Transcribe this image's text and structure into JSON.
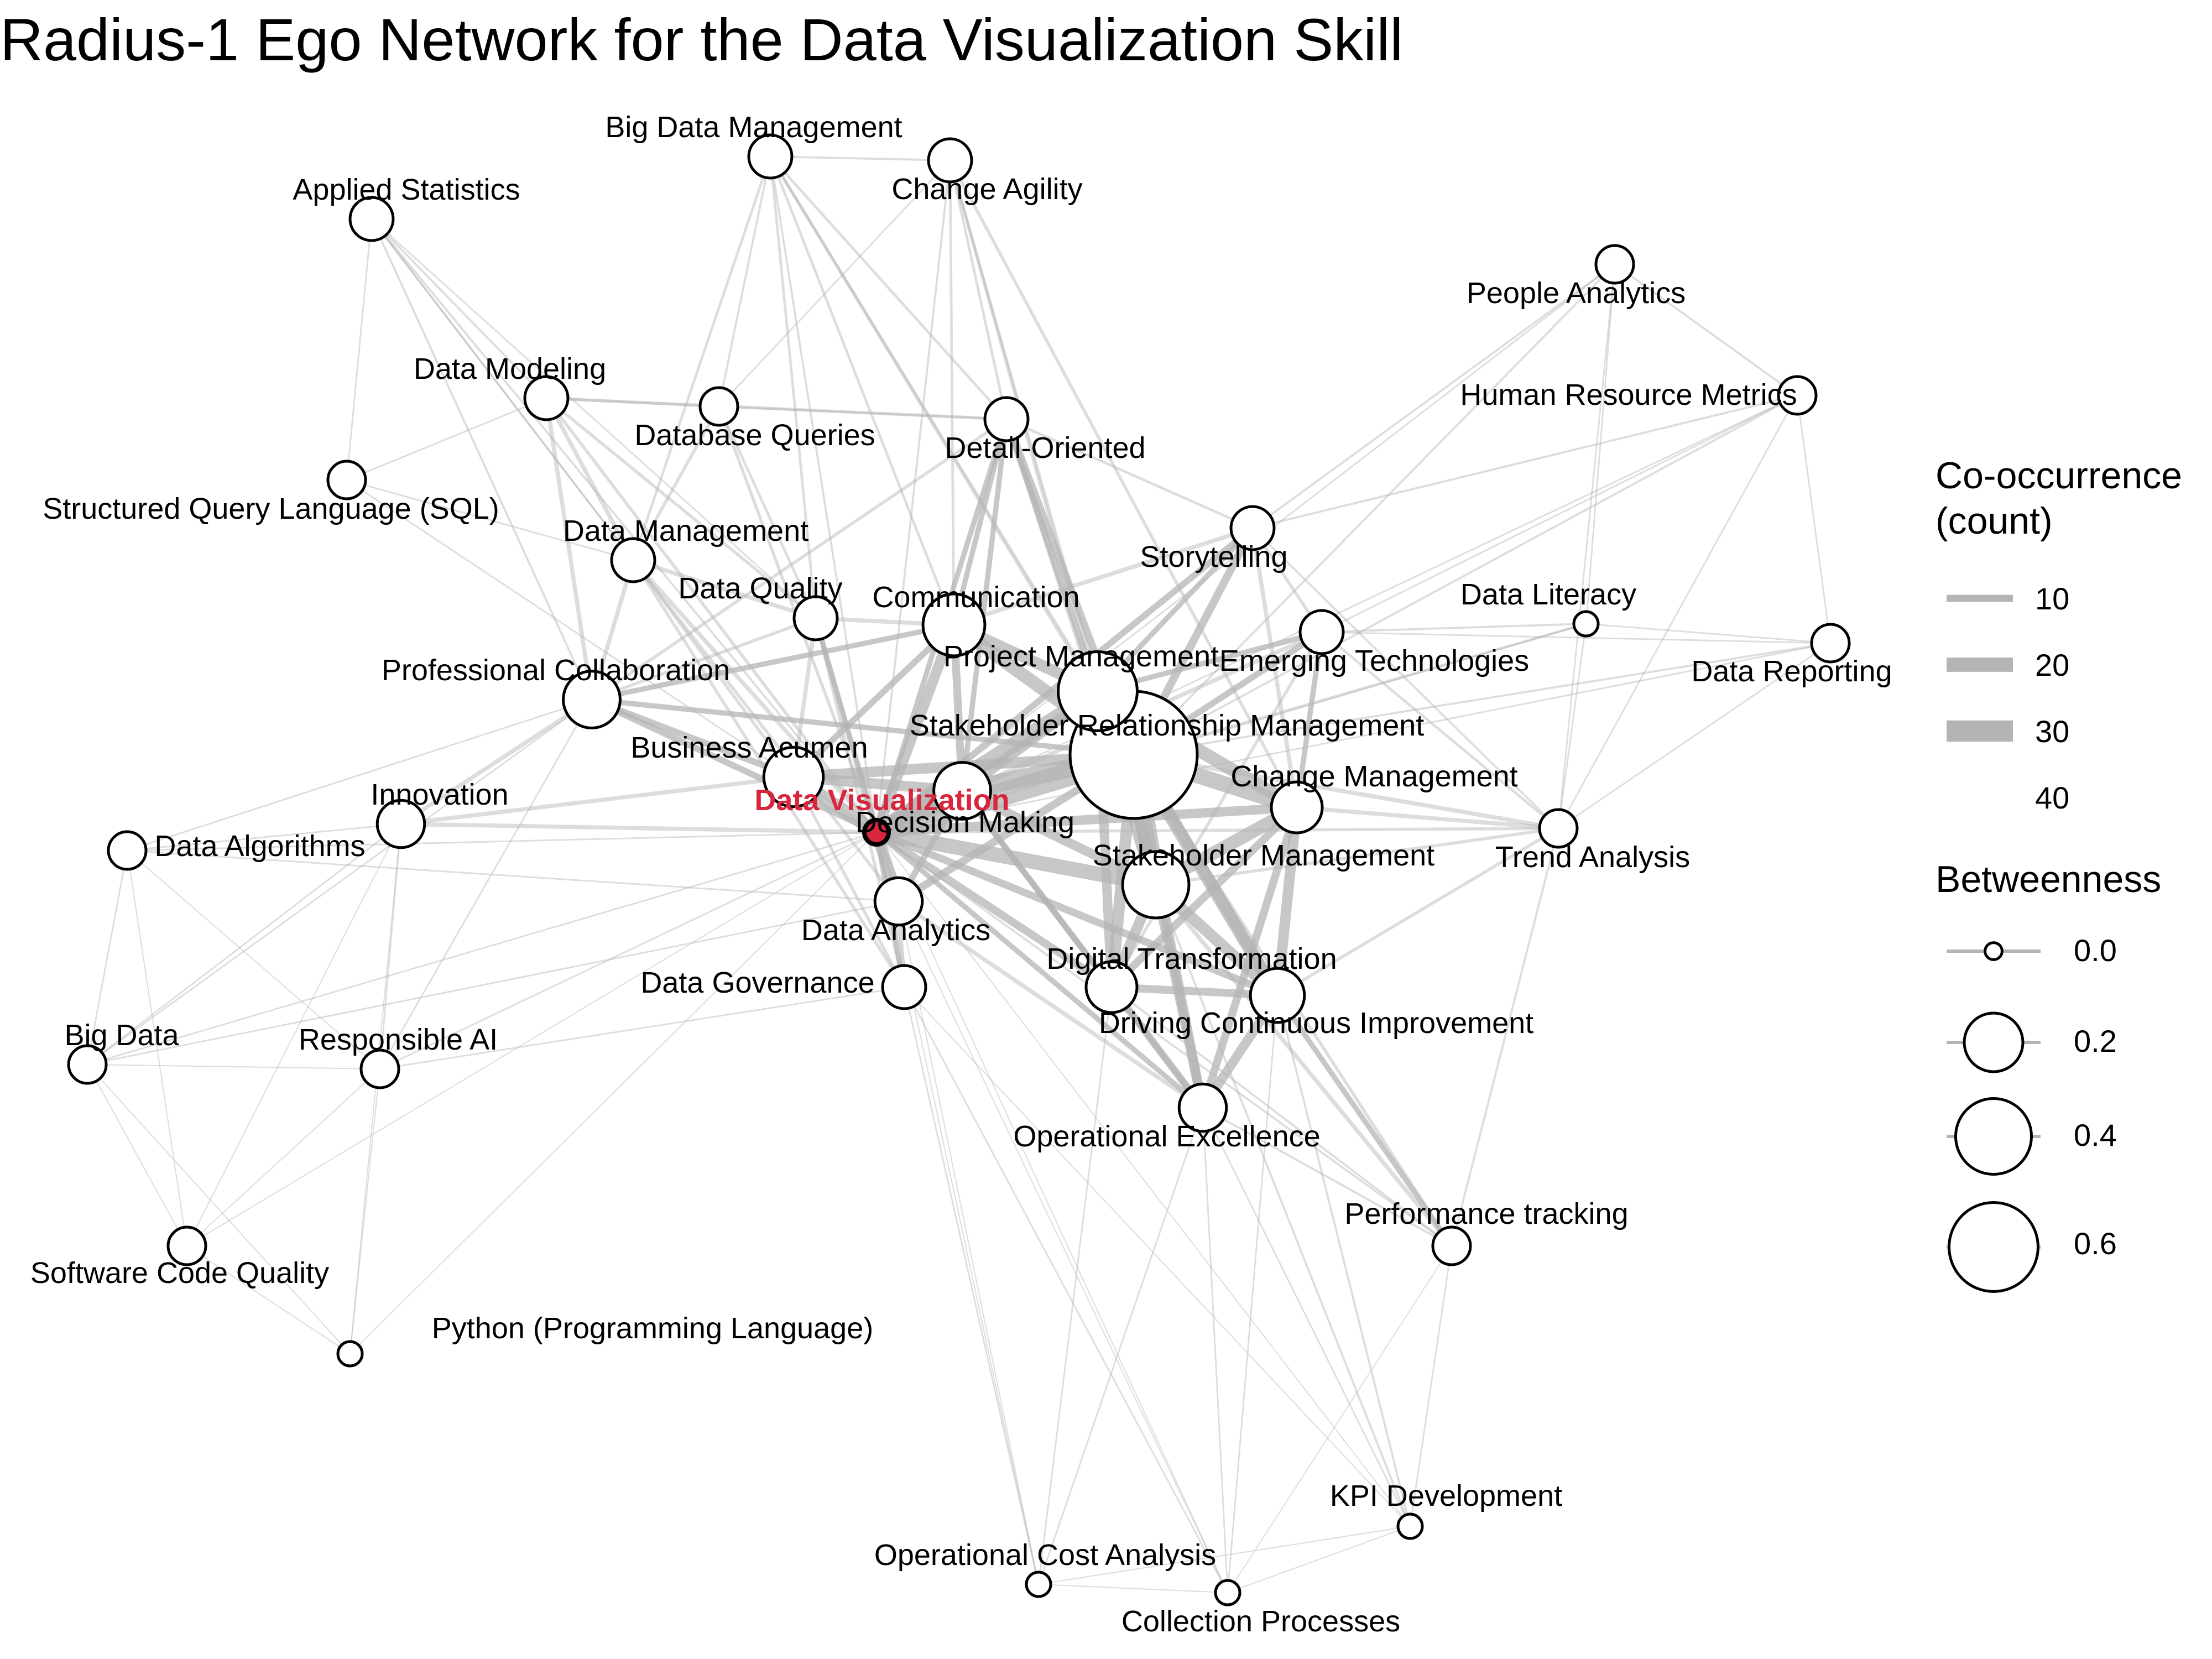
{
  "title": "Radius-1 Ego Network for the Data Visualization Skill",
  "ego": "Data Visualization",
  "colors": {
    "ego_fill": "#d7263d",
    "ego_label": "#d7263d",
    "edge": "#b4b4b4",
    "node_fill": "#ffffff",
    "node_stroke": "#000000"
  },
  "nodes": [
    {
      "id": "dv",
      "label": "Data Visualization",
      "betweenness": 0.0,
      "ego": true
    },
    {
      "id": "srm",
      "label": "Stakeholder Relationship Management",
      "betweenness": 0.6
    },
    {
      "id": "pm",
      "label": "Project Management",
      "betweenness": 0.17
    },
    {
      "id": "comm",
      "label": "Communication",
      "betweenness": 0.08
    },
    {
      "id": "sm",
      "label": "Stakeholder Management",
      "betweenness": 0.1
    },
    {
      "id": "dm_dec",
      "label": "Decision Making",
      "betweenness": 0.06
    },
    {
      "id": "ba",
      "label": "Business Acumen",
      "betweenness": 0.07
    },
    {
      "id": "pc",
      "label": "Professional Collaboration",
      "betweenness": 0.06
    },
    {
      "id": "cm",
      "label": "Change Management",
      "betweenness": 0.04
    },
    {
      "id": "dci",
      "label": "Driving Continuous Improvement",
      "betweenness": 0.05
    },
    {
      "id": "dt",
      "label": "Digital Transformation",
      "betweenness": 0.04
    },
    {
      "id": "da",
      "label": "Data Analytics",
      "betweenness": 0.03
    },
    {
      "id": "dg",
      "label": "Data Governance",
      "betweenness": 0.02
    },
    {
      "id": "dq",
      "label": "Data Quality",
      "betweenness": 0.02
    },
    {
      "id": "dmgmt",
      "label": "Data Management",
      "betweenness": 0.02
    },
    {
      "id": "inn",
      "label": "Innovation",
      "betweenness": 0.03
    },
    {
      "id": "oe",
      "label": "Operational Excellence",
      "betweenness": 0.03
    },
    {
      "id": "et",
      "label": "Emerging Technologies",
      "betweenness": 0.02
    },
    {
      "id": "st",
      "label": "Storytelling",
      "betweenness": 0.02
    },
    {
      "id": "do",
      "label": "Detail-Oriented",
      "betweenness": 0.02
    },
    {
      "id": "dbq",
      "label": "Database Queries",
      "betweenness": 0.01
    },
    {
      "id": "dmod",
      "label": "Data Modeling",
      "betweenness": 0.02
    },
    {
      "id": "as",
      "label": "Applied Statistics",
      "betweenness": 0.02
    },
    {
      "id": "bdm",
      "label": "Big Data Management",
      "betweenness": 0.02
    },
    {
      "id": "ca",
      "label": "Change Agility",
      "betweenness": 0.02
    },
    {
      "id": "pa",
      "label": "People Analytics",
      "betweenness": 0.01
    },
    {
      "id": "hrm",
      "label": "Human Resource Metrics",
      "betweenness": 0.01
    },
    {
      "id": "dl",
      "label": "Data Literacy",
      "betweenness": 0.0
    },
    {
      "id": "dr",
      "label": "Data Reporting",
      "betweenness": 0.01
    },
    {
      "id": "ta",
      "label": "Trend Analysis",
      "betweenness": 0.01
    },
    {
      "id": "sql",
      "label": "Structured Query Language (SQL)",
      "betweenness": 0.01
    },
    {
      "id": "dalg",
      "label": "Data Algorithms",
      "betweenness": 0.01
    },
    {
      "id": "bd",
      "label": "Big Data",
      "betweenness": 0.01
    },
    {
      "id": "rai",
      "label": "Responsible AI",
      "betweenness": 0.01
    },
    {
      "id": "scq",
      "label": "Software Code Quality",
      "betweenness": 0.01
    },
    {
      "id": "py",
      "label": "Python (Programming Language)",
      "betweenness": 0.0
    },
    {
      "id": "pt",
      "label": "Performance tracking",
      "betweenness": 0.01
    },
    {
      "id": "kpi",
      "label": "KPI Development",
      "betweenness": 0.0
    },
    {
      "id": "oca",
      "label": "Operational Cost Analysis",
      "betweenness": 0.0
    },
    {
      "id": "cp",
      "label": "Collection Processes",
      "betweenness": 0.0
    }
  ],
  "edges": [
    [
      "dv",
      "srm",
      45
    ],
    [
      "dv",
      "pm",
      30
    ],
    [
      "dv",
      "dm_dec",
      35
    ],
    [
      "dv",
      "ba",
      25
    ],
    [
      "dv",
      "comm",
      20
    ],
    [
      "dv",
      "sm",
      28
    ],
    [
      "dv",
      "cm",
      18
    ],
    [
      "dv",
      "da",
      22
    ],
    [
      "dv",
      "dt",
      15
    ],
    [
      "dv",
      "dci",
      14
    ],
    [
      "dv",
      "pc",
      12
    ],
    [
      "dv",
      "dq",
      10
    ],
    [
      "dv",
      "dg",
      10
    ],
    [
      "dv",
      "inn",
      8
    ],
    [
      "dv",
      "oe",
      10
    ],
    [
      "dv",
      "et",
      8
    ],
    [
      "dv",
      "st",
      12
    ],
    [
      "dv",
      "do",
      10
    ],
    [
      "dv",
      "dbq",
      6
    ],
    [
      "dv",
      "dmod",
      6
    ],
    [
      "dv",
      "dmgmt",
      8
    ],
    [
      "dv",
      "as",
      4
    ],
    [
      "dv",
      "bdm",
      4
    ],
    [
      "dv",
      "ca",
      4
    ],
    [
      "dv",
      "pa",
      3
    ],
    [
      "dv",
      "hrm",
      3
    ],
    [
      "dv",
      "dl",
      3
    ],
    [
      "dv",
      "dr",
      3
    ],
    [
      "dv",
      "ta",
      6
    ],
    [
      "dv",
      "sql",
      3
    ],
    [
      "dv",
      "dalg",
      3
    ],
    [
      "dv",
      "bd",
      3
    ],
    [
      "dv",
      "rai",
      3
    ],
    [
      "dv",
      "scq",
      2
    ],
    [
      "dv",
      "py",
      2
    ],
    [
      "dv",
      "pt",
      4
    ],
    [
      "dv",
      "kpi",
      2
    ],
    [
      "dv",
      "oca",
      2
    ],
    [
      "dv",
      "cp",
      2
    ],
    [
      "srm",
      "pm",
      40
    ],
    [
      "srm",
      "sm",
      38
    ],
    [
      "srm",
      "dm_dec",
      35
    ],
    [
      "srm",
      "comm",
      25
    ],
    [
      "srm",
      "cm",
      30
    ],
    [
      "srm",
      "dci",
      25
    ],
    [
      "srm",
      "dt",
      22
    ],
    [
      "srm",
      "ba",
      20
    ],
    [
      "srm",
      "st",
      15
    ],
    [
      "srm",
      "et",
      12
    ],
    [
      "srm",
      "oe",
      18
    ],
    [
      "srm",
      "ta",
      8
    ],
    [
      "srm",
      "do",
      14
    ],
    [
      "srm",
      "pc",
      10
    ],
    [
      "srm",
      "da",
      15
    ],
    [
      "srm",
      "dl",
      5
    ],
    [
      "srm",
      "dr",
      4
    ],
    [
      "srm",
      "pt",
      6
    ],
    [
      "srm",
      "hrm",
      4
    ],
    [
      "srm",
      "pa",
      4
    ],
    [
      "pm",
      "sm",
      30
    ],
    [
      "pm",
      "comm",
      22
    ],
    [
      "pm",
      "cm",
      25
    ],
    [
      "pm",
      "dm_dec",
      20
    ],
    [
      "pm",
      "dci",
      20
    ],
    [
      "pm",
      "dt",
      18
    ],
    [
      "pm",
      "st",
      10
    ],
    [
      "pm",
      "et",
      10
    ],
    [
      "pm",
      "do",
      12
    ],
    [
      "pm",
      "ca",
      6
    ],
    [
      "pm",
      "bdm",
      5
    ],
    [
      "sm",
      "cm",
      25
    ],
    [
      "sm",
      "dci",
      22
    ],
    [
      "sm",
      "dt",
      20
    ],
    [
      "sm",
      "oe",
      18
    ],
    [
      "sm",
      "dm_dec",
      18
    ],
    [
      "sm",
      "pt",
      8
    ],
    [
      "sm",
      "kpi",
      4
    ],
    [
      "sm",
      "ta",
      6
    ],
    [
      "cm",
      "dci",
      20
    ],
    [
      "cm",
      "dt",
      15
    ],
    [
      "cm",
      "oe",
      15
    ],
    [
      "cm",
      "ta",
      8
    ],
    [
      "cm",
      "et",
      10
    ],
    [
      "cm",
      "st",
      8
    ],
    [
      "dci",
      "dt",
      15
    ],
    [
      "dci",
      "oe",
      18
    ],
    [
      "dci",
      "pt",
      10
    ],
    [
      "dci",
      "kpi",
      4
    ],
    [
      "dci",
      "cp",
      3
    ],
    [
      "dt",
      "oe",
      14
    ],
    [
      "dt",
      "dm_dec",
      12
    ],
    [
      "dt",
      "oca",
      3
    ],
    [
      "dm_dec",
      "ba",
      20
    ],
    [
      "dm_dec",
      "comm",
      15
    ],
    [
      "dm_dec",
      "da",
      12
    ],
    [
      "dm_dec",
      "oe",
      10
    ],
    [
      "dm_dec",
      "do",
      10
    ],
    [
      "ba",
      "comm",
      12
    ],
    [
      "ba",
      "pc",
      12
    ],
    [
      "ba",
      "dq",
      8
    ],
    [
      "ba",
      "inn",
      8
    ],
    [
      "ba",
      "dg",
      6
    ],
    [
      "ba",
      "dmgmt",
      6
    ],
    [
      "comm",
      "dq",
      8
    ],
    [
      "comm",
      "do",
      10
    ],
    [
      "comm",
      "pc",
      10
    ],
    [
      "comm",
      "st",
      8
    ],
    [
      "comm",
      "bdm",
      5
    ],
    [
      "comm",
      "ca",
      5
    ],
    [
      "pc",
      "dmgmt",
      8
    ],
    [
      "pc",
      "dmod",
      8
    ],
    [
      "pc",
      "inn",
      8
    ],
    [
      "pc",
      "dq",
      6
    ],
    [
      "pc",
      "dalg",
      3
    ],
    [
      "pc",
      "bd",
      3
    ],
    [
      "pc",
      "rai",
      3
    ],
    [
      "pc",
      "as",
      4
    ],
    [
      "pc",
      "do",
      6
    ],
    [
      "da",
      "dg",
      8
    ],
    [
      "da",
      "dq",
      8
    ],
    [
      "da",
      "dmgmt",
      6
    ],
    [
      "da",
      "oe",
      8
    ],
    [
      "da",
      "bd",
      3
    ],
    [
      "da",
      "dalg",
      3
    ],
    [
      "dg",
      "dq",
      6
    ],
    [
      "dg",
      "dmgmt",
      6
    ],
    [
      "dg",
      "rai",
      3
    ],
    [
      "dg",
      "oca",
      3
    ],
    [
      "dg",
      "cp",
      3
    ],
    [
      "dg",
      "kpi",
      2
    ],
    [
      "dq",
      "dmgmt",
      8
    ],
    [
      "dq",
      "dmod",
      6
    ],
    [
      "dq",
      "dbq",
      5
    ],
    [
      "dq",
      "bdm",
      5
    ],
    [
      "dmgmt",
      "dmod",
      8
    ],
    [
      "dmgmt",
      "dbq",
      6
    ],
    [
      "dmgmt",
      "bdm",
      5
    ],
    [
      "dmgmt",
      "as",
      4
    ],
    [
      "dmgmt",
      "sql",
      3
    ],
    [
      "dmod",
      "dbq",
      5
    ],
    [
      "dmod",
      "as",
      4
    ],
    [
      "dmod",
      "sql",
      3
    ],
    [
      "dmod",
      "do",
      6
    ],
    [
      "dbq",
      "bdm",
      4
    ],
    [
      "dbq",
      "ca",
      3
    ],
    [
      "dbq",
      "do",
      4
    ],
    [
      "as",
      "sql",
      3
    ],
    [
      "as",
      "dmgmt",
      3
    ],
    [
      "as",
      "dq",
      3
    ],
    [
      "bdm",
      "ca",
      4
    ],
    [
      "bdm",
      "do",
      5
    ],
    [
      "bdm",
      "srm",
      6
    ],
    [
      "ca",
      "do",
      5
    ],
    [
      "ca",
      "sm",
      5
    ],
    [
      "ca",
      "cm",
      6
    ],
    [
      "do",
      "st",
      5
    ],
    [
      "do",
      "sm",
      8
    ],
    [
      "st",
      "et",
      6
    ],
    [
      "st",
      "pa",
      4
    ],
    [
      "st",
      "hrm",
      4
    ],
    [
      "st",
      "ta",
      4
    ],
    [
      "et",
      "dl",
      4
    ],
    [
      "et",
      "ta",
      5
    ],
    [
      "et",
      "dr",
      3
    ],
    [
      "et",
      "dt",
      6
    ],
    [
      "pa",
      "hrm",
      4
    ],
    [
      "pa",
      "dl",
      3
    ],
    [
      "pa",
      "ta",
      3
    ],
    [
      "hrm",
      "dr",
      3
    ],
    [
      "hrm",
      "ta",
      3
    ],
    [
      "hrm",
      "et",
      3
    ],
    [
      "dl",
      "dr",
      3
    ],
    [
      "dl",
      "ta",
      3
    ],
    [
      "dr",
      "ta",
      3
    ],
    [
      "ta",
      "pt",
      4
    ],
    [
      "ta",
      "dci",
      6
    ],
    [
      "inn",
      "dalg",
      3
    ],
    [
      "inn",
      "bd",
      3
    ],
    [
      "inn",
      "rai",
      3
    ],
    [
      "inn",
      "scq",
      2
    ],
    [
      "inn",
      "py",
      2
    ],
    [
      "dalg",
      "bd",
      3
    ],
    [
      "dalg",
      "scq",
      2
    ],
    [
      "dalg",
      "rai",
      2
    ],
    [
      "bd",
      "rai",
      2
    ],
    [
      "bd",
      "scq",
      2
    ],
    [
      "bd",
      "py",
      2
    ],
    [
      "rai",
      "scq",
      2
    ],
    [
      "rai",
      "py",
      2
    ],
    [
      "scq",
      "py",
      2
    ],
    [
      "pt",
      "kpi",
      3
    ],
    [
      "pt",
      "cp",
      2
    ],
    [
      "pt",
      "oe",
      4
    ],
    [
      "pt",
      "dt",
      4
    ],
    [
      "kpi",
      "cp",
      2
    ],
    [
      "kpi",
      "oca",
      2
    ],
    [
      "kpi",
      "oe",
      3
    ],
    [
      "oca",
      "cp",
      2
    ],
    [
      "oca",
      "oe",
      3
    ],
    [
      "oca",
      "da",
      2
    ],
    [
      "cp",
      "oe",
      3
    ],
    [
      "cp",
      "da",
      2
    ]
  ],
  "legend": {
    "edge_title_line1": "Co-occurrence",
    "edge_title_line2": "(count)",
    "edge_items": [
      {
        "label": "10",
        "value": 10
      },
      {
        "label": "20",
        "value": 20
      },
      {
        "label": "30",
        "value": 30
      },
      {
        "label": "40",
        "value": 40
      }
    ],
    "node_title": "Betweenness",
    "node_items": [
      {
        "label": "0.0",
        "value": 0.0
      },
      {
        "label": "0.2",
        "value": 0.2
      },
      {
        "label": "0.4",
        "value": 0.4
      },
      {
        "label": "0.6",
        "value": 0.6
      }
    ]
  }
}
